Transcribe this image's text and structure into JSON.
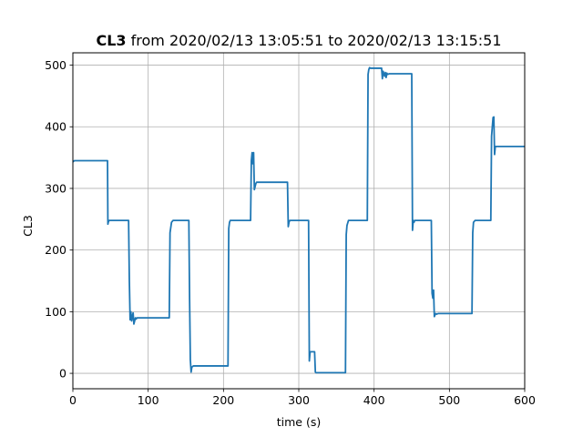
{
  "chart_data": {
    "type": "line",
    "title_bold": "CL3",
    "title_rest": " from 2020/02/13 13:05:51 to 2020/02/13 13:15:51",
    "xlabel": "time (s)",
    "ylabel": "CL3",
    "xlim": [
      0,
      600
    ],
    "ylim": [
      -25,
      520
    ],
    "xticks": [
      0,
      100,
      200,
      300,
      400,
      500,
      600
    ],
    "yticks": [
      0,
      100,
      200,
      300,
      400,
      500
    ],
    "grid": true,
    "series": [
      {
        "color": "#1f77b4",
        "x": [
          0,
          2,
          46,
          46.5,
          47,
          48,
          74,
          75,
          76,
          77,
          78,
          80,
          81,
          83,
          84,
          85,
          128,
          129,
          131,
          133,
          154,
          155,
          156,
          157,
          158,
          160,
          206,
          207,
          208,
          209,
          236,
          237,
          238,
          239,
          240,
          241,
          243,
          244,
          285,
          286,
          287,
          288,
          313,
          314,
          315,
          316,
          321,
          322,
          323,
          362,
          363,
          364,
          366,
          368,
          391,
          392,
          393,
          394,
          395,
          410,
          411,
          412,
          414,
          415,
          416,
          417,
          418,
          420,
          450,
          451,
          452,
          453,
          454,
          476,
          477,
          478,
          479,
          480,
          481,
          482,
          483,
          485,
          530,
          531,
          532,
          534,
          555,
          556,
          557,
          558,
          559,
          560,
          561,
          562,
          600
        ],
        "y": [
          343,
          345,
          345,
          242,
          245,
          248,
          248,
          150,
          87,
          100,
          85,
          98,
          80,
          90,
          88,
          90,
          90,
          228,
          245,
          248,
          248,
          120,
          22,
          2,
          10,
          12,
          12,
          235,
          245,
          248,
          248,
          345,
          358,
          340,
          358,
          298,
          308,
          310,
          310,
          238,
          245,
          248,
          248,
          20,
          35,
          35,
          35,
          2,
          1,
          1,
          225,
          240,
          248,
          248,
          248,
          485,
          493,
          496,
          495,
          495,
          478,
          490,
          482,
          488,
          480,
          487,
          485,
          486,
          486,
          232,
          248,
          245,
          248,
          248,
          130,
          122,
          135,
          92,
          95,
          97,
          96,
          97,
          97,
          228,
          245,
          248,
          248,
          385,
          400,
          415,
          416,
          355,
          368,
          368,
          368
        ]
      }
    ]
  }
}
